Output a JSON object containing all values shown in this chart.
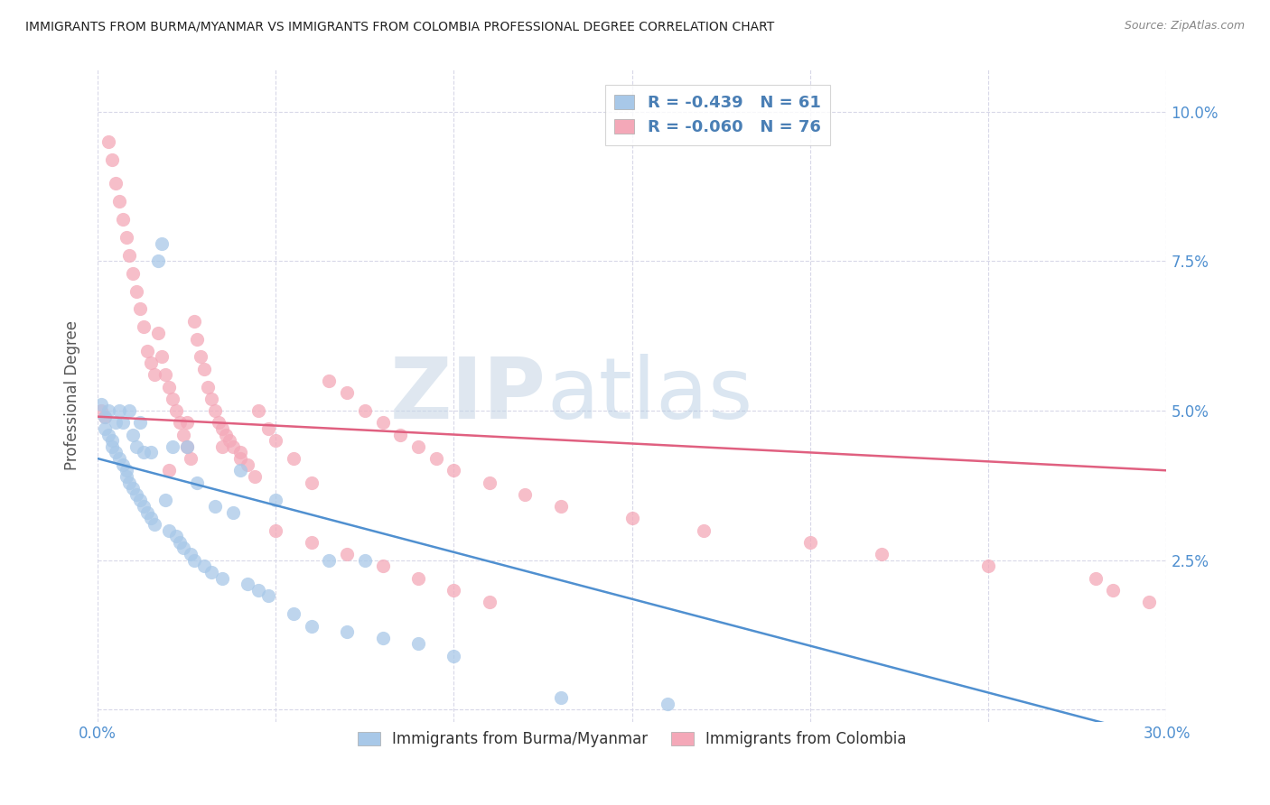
{
  "title": "IMMIGRANTS FROM BURMA/MYANMAR VS IMMIGRANTS FROM COLOMBIA PROFESSIONAL DEGREE CORRELATION CHART",
  "source": "Source: ZipAtlas.com",
  "ylabel": "Professional Degree",
  "yticks": [
    0.0,
    0.025,
    0.05,
    0.075,
    0.1
  ],
  "ytick_labels": [
    "",
    "2.5%",
    "5.0%",
    "7.5%",
    "10.0%"
  ],
  "xlim": [
    0.0,
    0.3
  ],
  "ylim": [
    -0.002,
    0.107
  ],
  "watermark_zip": "ZIP",
  "watermark_atlas": "atlas",
  "legend_r1": "-0.439",
  "legend_n1": "61",
  "legend_r2": "-0.060",
  "legend_n2": "76",
  "color_blue": "#a8c8e8",
  "color_pink": "#f4a8b8",
  "line_color_blue": "#5090d0",
  "line_color_pink": "#e06080",
  "blue_line_x": [
    0.0,
    0.3
  ],
  "blue_line_y": [
    0.042,
    -0.005
  ],
  "pink_line_x": [
    0.0,
    0.3
  ],
  "pink_line_y": [
    0.049,
    0.04
  ],
  "background_color": "#ffffff",
  "grid_color": "#d8d8e8",
  "title_color": "#222222",
  "axis_label_color": "#5090d0",
  "legend_label": [
    "Immigrants from Burma/Myanmar",
    "Immigrants from Colombia"
  ],
  "scatter_blue_x": [
    0.001,
    0.002,
    0.002,
    0.003,
    0.003,
    0.004,
    0.004,
    0.005,
    0.005,
    0.006,
    0.006,
    0.007,
    0.007,
    0.008,
    0.008,
    0.009,
    0.009,
    0.01,
    0.01,
    0.011,
    0.011,
    0.012,
    0.012,
    0.013,
    0.013,
    0.014,
    0.015,
    0.015,
    0.016,
    0.017,
    0.018,
    0.019,
    0.02,
    0.021,
    0.022,
    0.023,
    0.024,
    0.025,
    0.026,
    0.027,
    0.028,
    0.03,
    0.032,
    0.033,
    0.035,
    0.038,
    0.04,
    0.042,
    0.045,
    0.048,
    0.05,
    0.055,
    0.06,
    0.065,
    0.07,
    0.075,
    0.08,
    0.09,
    0.1,
    0.13,
    0.16
  ],
  "scatter_blue_y": [
    0.051,
    0.049,
    0.047,
    0.046,
    0.05,
    0.045,
    0.044,
    0.048,
    0.043,
    0.042,
    0.05,
    0.041,
    0.048,
    0.04,
    0.039,
    0.038,
    0.05,
    0.037,
    0.046,
    0.036,
    0.044,
    0.035,
    0.048,
    0.034,
    0.043,
    0.033,
    0.032,
    0.043,
    0.031,
    0.075,
    0.078,
    0.035,
    0.03,
    0.044,
    0.029,
    0.028,
    0.027,
    0.044,
    0.026,
    0.025,
    0.038,
    0.024,
    0.023,
    0.034,
    0.022,
    0.033,
    0.04,
    0.021,
    0.02,
    0.019,
    0.035,
    0.016,
    0.014,
    0.025,
    0.013,
    0.025,
    0.012,
    0.011,
    0.009,
    0.002,
    0.001
  ],
  "scatter_pink_x": [
    0.001,
    0.002,
    0.003,
    0.004,
    0.005,
    0.006,
    0.007,
    0.008,
    0.009,
    0.01,
    0.011,
    0.012,
    0.013,
    0.014,
    0.015,
    0.016,
    0.017,
    0.018,
    0.019,
    0.02,
    0.021,
    0.022,
    0.023,
    0.024,
    0.025,
    0.026,
    0.027,
    0.028,
    0.029,
    0.03,
    0.031,
    0.032,
    0.033,
    0.034,
    0.035,
    0.036,
    0.037,
    0.038,
    0.04,
    0.042,
    0.044,
    0.045,
    0.048,
    0.05,
    0.055,
    0.06,
    0.065,
    0.07,
    0.075,
    0.08,
    0.085,
    0.09,
    0.095,
    0.1,
    0.11,
    0.12,
    0.13,
    0.15,
    0.17,
    0.2,
    0.22,
    0.25,
    0.28,
    0.285,
    0.295,
    0.02,
    0.025,
    0.035,
    0.04,
    0.05,
    0.06,
    0.07,
    0.08,
    0.09,
    0.1,
    0.11
  ],
  "scatter_pink_y": [
    0.05,
    0.049,
    0.095,
    0.092,
    0.088,
    0.085,
    0.082,
    0.079,
    0.076,
    0.073,
    0.07,
    0.067,
    0.064,
    0.06,
    0.058,
    0.056,
    0.063,
    0.059,
    0.056,
    0.054,
    0.052,
    0.05,
    0.048,
    0.046,
    0.044,
    0.042,
    0.065,
    0.062,
    0.059,
    0.057,
    0.054,
    0.052,
    0.05,
    0.048,
    0.047,
    0.046,
    0.045,
    0.044,
    0.043,
    0.041,
    0.039,
    0.05,
    0.047,
    0.045,
    0.042,
    0.038,
    0.055,
    0.053,
    0.05,
    0.048,
    0.046,
    0.044,
    0.042,
    0.04,
    0.038,
    0.036,
    0.034,
    0.032,
    0.03,
    0.028,
    0.026,
    0.024,
    0.022,
    0.02,
    0.018,
    0.04,
    0.048,
    0.044,
    0.042,
    0.03,
    0.028,
    0.026,
    0.024,
    0.022,
    0.02,
    0.018
  ]
}
